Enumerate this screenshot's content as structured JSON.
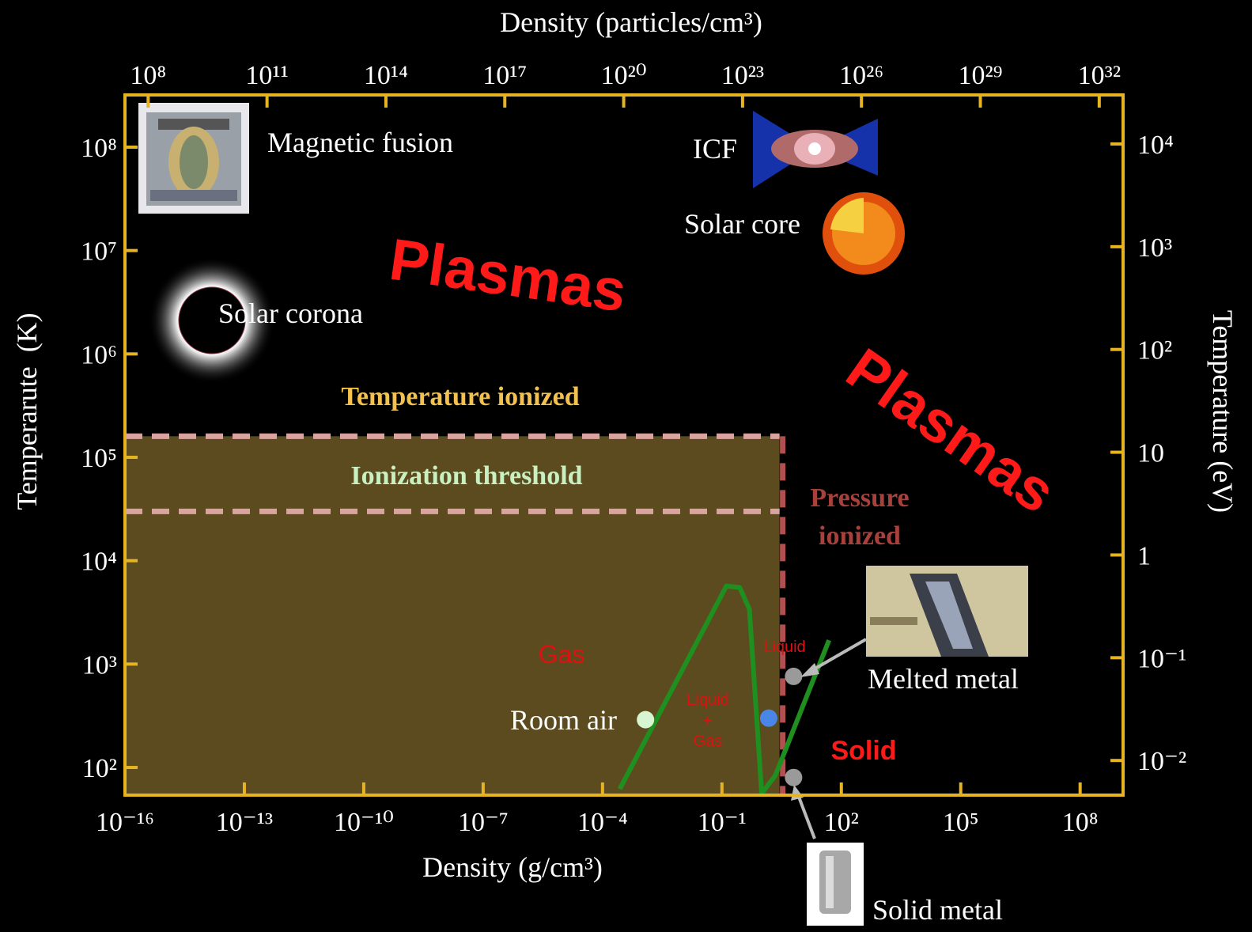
{
  "chart_data": {
    "type": "scatter",
    "x2label": "Density (particles/cm³)",
    "xlabel": "Density (g/cm³)",
    "ylabel": "Temperarute  (K)",
    "y2label": "Temperature (eV)",
    "xscale": "log",
    "yscale": "log",
    "xlim": [
      1e-16,
      1200000000.0
    ],
    "xticks": [
      {
        "value": 1e-16,
        "label": "10⁻¹⁶"
      },
      {
        "value": 1e-13,
        "label": "10⁻¹³"
      },
      {
        "value": 1e-10,
        "label": "10⁻¹⁰"
      },
      {
        "value": 1e-07,
        "label": "10⁻⁷"
      },
      {
        "value": 0.0001,
        "label": "10⁻⁴"
      },
      {
        "value": 0.1,
        "label": "10⁻¹"
      },
      {
        "value": 100,
        "label": "10²"
      },
      {
        "value": 100000,
        "label": "10⁵"
      },
      {
        "value": 100000000,
        "label": "10⁸"
      }
    ],
    "x2lim": [
      26000000.0,
      4e+32
    ],
    "x2ticks": [
      {
        "value": 100000000.0,
        "label": "10⁸"
      },
      {
        "value": 100000000000.0,
        "label": "10¹¹"
      },
      {
        "value": 100000000000000.0,
        "label": "10¹⁴"
      },
      {
        "value": 1e+17,
        "label": "10¹⁷"
      },
      {
        "value": 1e+20,
        "label": "10²⁰"
      },
      {
        "value": 1e+23,
        "label": "10²³"
      },
      {
        "value": 1e+26,
        "label": "10²⁶"
      },
      {
        "value": 1e+29,
        "label": "10²⁹"
      },
      {
        "value": 1e+32,
        "label": "10³²"
      }
    ],
    "ylim": [
      54,
      320000000.0
    ],
    "yticks": [
      {
        "value": 100000000.0,
        "label": "10⁸"
      },
      {
        "value": 10000000.0,
        "label": "10⁷"
      },
      {
        "value": 1000000.0,
        "label": "10⁶"
      },
      {
        "value": 100000.0,
        "label": "10⁵"
      },
      {
        "value": 10000.0,
        "label": "10⁴"
      },
      {
        "value": 1000,
        "label": "10³"
      },
      {
        "value": 100,
        "label": "10²"
      }
    ],
    "y2lim": [
      0.0046,
      30000
    ],
    "y2ticks": [
      {
        "value": 10000,
        "label": "10⁴"
      },
      {
        "value": 1000,
        "label": "10³"
      },
      {
        "value": 100,
        "label": "10²"
      },
      10,
      1,
      {
        "value": 0.1,
        "label": "10⁻¹"
      },
      {
        "value": 0.01,
        "label": "10⁻²"
      }
    ],
    "frame_color": "#e6b422",
    "region": {
      "xmax": 2.8,
      "ymax": 160000,
      "threshold": 30000,
      "color": "#5c4b1f"
    },
    "curve": {
      "color": "#1f8f1f",
      "x": [
        0.00027,
        0.13,
        0.28,
        0.49,
        1.0,
        2.2,
        49
      ],
      "values": [
        62,
        5700,
        5500,
        3400,
        56,
        84,
        1700
      ]
    },
    "points": [
      {
        "x": 0.0012,
        "y": 290,
        "color": "#d6f5d0"
      },
      {
        "x": 1.5,
        "y": 300,
        "color": "#4a86e8"
      },
      {
        "x": 6.3,
        "y": 760,
        "color": "#9a9a9a"
      },
      {
        "x": 6.3,
        "y": 80,
        "color": "#9a9a9a"
      }
    ],
    "annotations": {
      "magnetic_fusion": "Magnetic fusion",
      "icf": "ICF",
      "solar_core": "Solar core",
      "solar_corona": "Solar corona",
      "plasmas_1": "Plasmas",
      "plasmas_2": "Plasmas",
      "temperature_ionized": "Temperature ionized",
      "ionization_threshold": "Ionization threshold",
      "pressure_ionized": [
        "Pressure",
        "ionized"
      ],
      "gas": "Gas",
      "liquid": "Liquid",
      "liquid_gas": [
        "Liquid",
        "+",
        "Gas"
      ],
      "solid": "Solid",
      "room_air": "Room air",
      "melted_metal": "Melted metal",
      "solid_metal": "Solid metal"
    }
  }
}
